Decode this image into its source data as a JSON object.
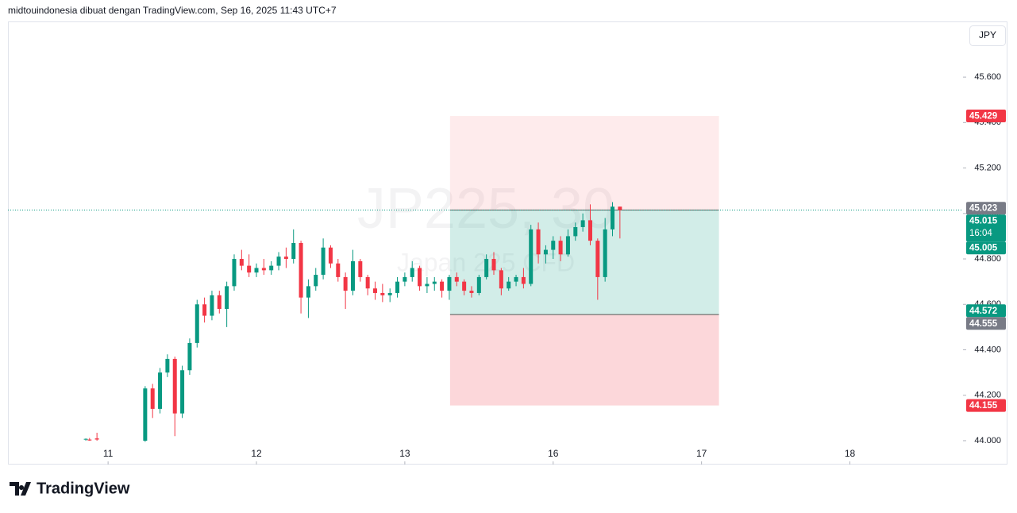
{
  "header": "midtouindonesia dibuat dengan TradingView.com, Sep 16, 2025 11:43 UTC+7",
  "currency_button": "JPY",
  "footer_logo": "TradingView",
  "chart_data": {
    "type": "candlestick",
    "watermark": "JP225, 30",
    "watermark_subtitle": "Japan 225 CFD",
    "up_color": "#089981",
    "down_color": "#f23645",
    "x": [
      -6,
      -5,
      -3,
      10,
      12,
      14,
      16,
      18,
      20,
      22,
      24,
      26,
      28,
      30,
      32,
      34,
      36,
      38,
      40,
      42,
      44,
      46,
      48,
      50,
      52,
      54,
      56,
      58,
      60,
      62,
      64,
      66,
      68,
      70,
      72,
      74,
      76,
      78,
      80,
      82,
      84,
      86,
      88,
      90,
      92,
      94,
      96,
      98,
      100,
      102,
      104,
      106,
      108,
      110,
      112,
      114,
      116,
      118,
      120,
      122,
      124,
      126,
      128,
      130,
      132,
      134,
      136,
      138
    ],
    "open": [
      44.005,
      44.005,
      44.01,
      44.0,
      44.23,
      44.14,
      44.3,
      44.36,
      44.12,
      44.31,
      44.43,
      44.6,
      44.55,
      44.64,
      44.58,
      44.68,
      44.8,
      44.77,
      44.74,
      44.76,
      44.75,
      44.77,
      44.81,
      44.8,
      44.87,
      44.63,
      44.68,
      44.73,
      44.85,
      44.78,
      44.72,
      44.66,
      44.79,
      44.72,
      44.67,
      44.65,
      44.64,
      44.65,
      44.7,
      44.72,
      44.76,
      44.68,
      44.69,
      44.7,
      44.66,
      44.72,
      44.7,
      44.66,
      44.65,
      44.72,
      44.8,
      44.75,
      44.67,
      44.7,
      44.72,
      44.69,
      44.93,
      44.82,
      44.84,
      44.88,
      44.82,
      44.9,
      44.94,
      44.97,
      44.88,
      44.72,
      44.93,
      45.03
    ],
    "high": [
      44.01,
      44.012,
      44.035,
      44.24,
      44.25,
      44.32,
      44.38,
      44.37,
      44.33,
      44.45,
      44.62,
      44.63,
      44.66,
      44.66,
      44.7,
      44.82,
      44.84,
      44.82,
      44.78,
      44.8,
      44.79,
      44.83,
      44.85,
      44.93,
      44.88,
      44.71,
      44.76,
      44.89,
      44.86,
      44.8,
      44.74,
      44.84,
      44.8,
      44.73,
      44.7,
      44.69,
      44.67,
      44.72,
      44.74,
      44.79,
      44.77,
      44.72,
      44.72,
      44.71,
      44.73,
      44.74,
      44.71,
      44.68,
      44.73,
      44.82,
      44.83,
      44.76,
      44.72,
      44.73,
      44.76,
      44.95,
      44.96,
      44.86,
      44.9,
      44.9,
      44.93,
      44.96,
      45.0,
      45.04,
      44.89,
      44.98,
      45.05,
      45.03
    ],
    "low": [
      44.0,
      44.0,
      44.0,
      43.995,
      44.1,
      44.12,
      44.28,
      44.02,
      44.1,
      44.29,
      44.41,
      44.52,
      44.53,
      44.56,
      44.5,
      44.66,
      44.75,
      44.72,
      44.72,
      44.73,
      44.73,
      44.75,
      44.76,
      44.78,
      44.56,
      44.54,
      44.66,
      44.71,
      44.76,
      44.7,
      44.58,
      44.64,
      44.7,
      44.64,
      44.62,
      44.61,
      44.61,
      44.63,
      44.68,
      44.7,
      44.66,
      44.65,
      44.66,
      44.63,
      44.62,
      44.68,
      44.64,
      44.63,
      44.64,
      44.71,
      44.73,
      44.64,
      44.66,
      44.68,
      44.67,
      44.68,
      44.78,
      44.78,
      44.8,
      44.79,
      44.81,
      44.88,
      44.92,
      44.86,
      44.62,
      44.7,
      44.9,
      44.89
    ],
    "close": [
      44.008,
      44.001,
      44.005,
      44.23,
      44.14,
      44.3,
      44.36,
      44.12,
      44.31,
      44.43,
      44.6,
      44.55,
      44.64,
      44.58,
      44.68,
      44.8,
      44.77,
      44.74,
      44.76,
      44.75,
      44.77,
      44.81,
      44.8,
      44.87,
      44.63,
      44.68,
      44.73,
      44.85,
      44.78,
      44.72,
      44.66,
      44.79,
      44.72,
      44.67,
      44.65,
      44.64,
      44.65,
      44.7,
      44.72,
      44.76,
      44.68,
      44.69,
      44.7,
      44.66,
      44.72,
      44.7,
      44.66,
      44.65,
      44.72,
      44.8,
      44.75,
      44.67,
      44.7,
      44.72,
      44.69,
      44.93,
      44.82,
      44.84,
      44.88,
      44.82,
      44.9,
      44.94,
      44.97,
      44.88,
      44.72,
      44.93,
      45.03,
      45.015
    ],
    "xlim": [
      -27,
      230.5
    ],
    "ylim": [
      43.895,
      45.845
    ],
    "xticks": [
      {
        "value": 0,
        "label": "11"
      },
      {
        "value": 40,
        "label": "12"
      },
      {
        "value": 80,
        "label": "13"
      },
      {
        "value": 120,
        "label": "16"
      },
      {
        "value": 160,
        "label": "17"
      },
      {
        "value": 200,
        "label": "18"
      }
    ],
    "yticks": [
      {
        "value": 44,
        "label": "44.000"
      },
      {
        "value": 44.2,
        "label": "44.200"
      },
      {
        "value": 44.4,
        "label": "44.400"
      },
      {
        "value": 44.6,
        "label": "44.600"
      },
      {
        "value": 44.8,
        "label": "44.800"
      },
      {
        "value": 45,
        "label": "45.000"
      },
      {
        "value": 45.2,
        "label": "45.200"
      },
      {
        "value": 45.4,
        "label": "45.400"
      },
      {
        "value": 45.6,
        "label": "45.600"
      }
    ],
    "current_price": 45.015,
    "position": {
      "x_start": 92.2,
      "x_end": 164.7,
      "target": 45.429,
      "entry": 45.015,
      "mid": 44.555,
      "stop": 44.155
    },
    "price_labels": [
      {
        "value": 45.429,
        "label": "45.429",
        "color": "#f23645"
      },
      {
        "value": 45.023,
        "label": "45.023",
        "color": "#787b86"
      },
      {
        "value": 45.015,
        "label": "45.015",
        "sublabel": "16:04",
        "color": "#089981"
      },
      {
        "value": 45.005,
        "label": "45.005",
        "color": "#089981"
      },
      {
        "value": 44.572,
        "label": "44.572",
        "color": "#089981"
      },
      {
        "value": 44.555,
        "label": "44.555",
        "color": "#787b86"
      },
      {
        "value": 44.155,
        "label": "44.155",
        "color": "#f23645"
      }
    ]
  }
}
